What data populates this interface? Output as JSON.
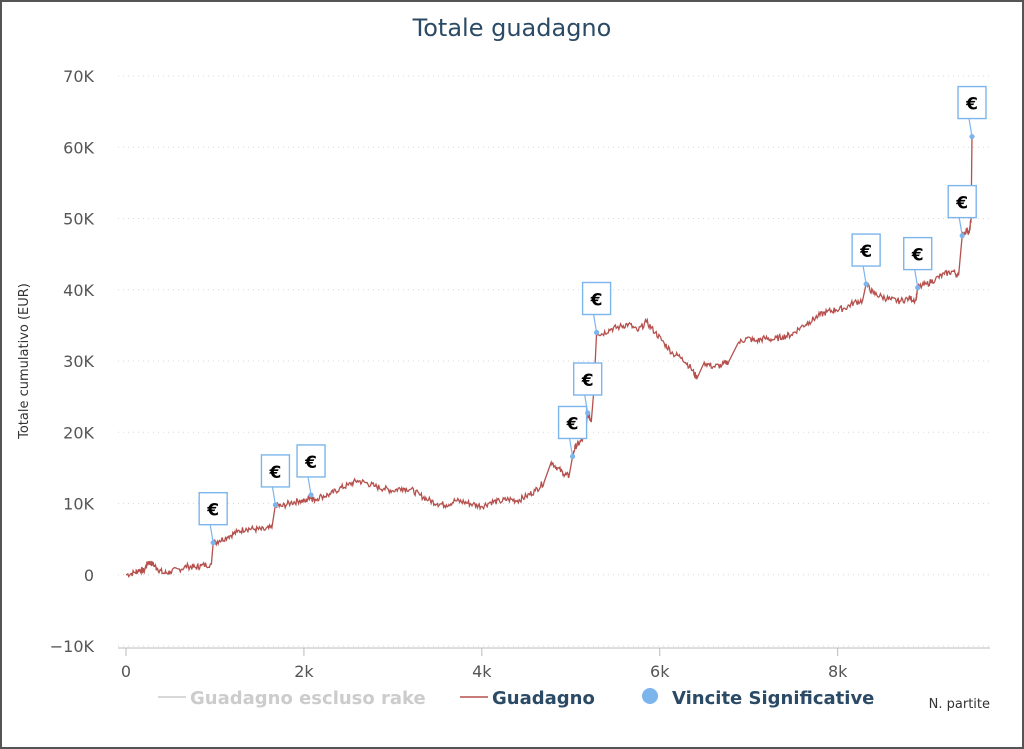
{
  "chart_data": {
    "type": "line",
    "title": "Totale guadagno",
    "ylabel": "Totale cumulativo (EUR)",
    "xlabel": "N. partite",
    "xlim": [
      0,
      9600
    ],
    "ylim": [
      -10000,
      70000
    ],
    "x_ticks": [
      {
        "value": 0,
        "label": "0"
      },
      {
        "value": 2000,
        "label": "2k"
      },
      {
        "value": 4000,
        "label": "4k"
      },
      {
        "value": 6000,
        "label": "6k"
      },
      {
        "value": 8000,
        "label": "8k"
      }
    ],
    "y_ticks": [
      {
        "value": 70000,
        "label": "70K"
      },
      {
        "value": 60000,
        "label": "60K"
      },
      {
        "value": 50000,
        "label": "50K"
      },
      {
        "value": 40000,
        "label": "40K"
      },
      {
        "value": 30000,
        "label": "30K"
      },
      {
        "value": 20000,
        "label": "20K"
      },
      {
        "value": 10000,
        "label": "10K"
      },
      {
        "value": 0,
        "label": "0"
      },
      {
        "value": -10000,
        "label": "−10K"
      }
    ],
    "grid": "horizontal-dotted",
    "legend_position": "bottom",
    "series": [
      {
        "name": "Guadagno escluso rake",
        "color": "#cccccc",
        "visible": false,
        "points": []
      },
      {
        "name": "Guadagno",
        "color": "#b5504d",
        "visible": true,
        "points": [
          [
            0,
            0
          ],
          [
            100,
            300
          ],
          [
            150,
            700
          ],
          [
            200,
            500
          ],
          [
            250,
            1800
          ],
          [
            300,
            1500
          ],
          [
            350,
            900
          ],
          [
            420,
            200
          ],
          [
            500,
            400
          ],
          [
            600,
            800
          ],
          [
            700,
            1200
          ],
          [
            780,
            1000
          ],
          [
            850,
            1300
          ],
          [
            960,
            1500
          ],
          [
            980,
            4500
          ],
          [
            1050,
            4800
          ],
          [
            1150,
            5400
          ],
          [
            1250,
            6000
          ],
          [
            1350,
            6500
          ],
          [
            1450,
            6400
          ],
          [
            1550,
            6300
          ],
          [
            1640,
            6600
          ],
          [
            1680,
            9800
          ],
          [
            1750,
            9600
          ],
          [
            1850,
            10100
          ],
          [
            1950,
            10400
          ],
          [
            2020,
            10300
          ],
          [
            2080,
            11200
          ],
          [
            2100,
            10500
          ],
          [
            2200,
            11000
          ],
          [
            2300,
            11300
          ],
          [
            2400,
            12100
          ],
          [
            2500,
            12600
          ],
          [
            2600,
            13200
          ],
          [
            2700,
            12900
          ],
          [
            2800,
            12400
          ],
          [
            2900,
            12100
          ],
          [
            3000,
            11800
          ],
          [
            3100,
            12200
          ],
          [
            3200,
            12000
          ],
          [
            3300,
            11200
          ],
          [
            3400,
            10500
          ],
          [
            3500,
            10000
          ],
          [
            3600,
            9800
          ],
          [
            3700,
            10400
          ],
          [
            3800,
            10200
          ],
          [
            3900,
            9900
          ],
          [
            4000,
            9600
          ],
          [
            4100,
            10200
          ],
          [
            4200,
            10300
          ],
          [
            4300,
            10600
          ],
          [
            4400,
            10400
          ],
          [
            4500,
            11000
          ],
          [
            4600,
            11800
          ],
          [
            4700,
            13000
          ],
          [
            4780,
            15800
          ],
          [
            4850,
            15000
          ],
          [
            4920,
            14200
          ],
          [
            4980,
            13800
          ],
          [
            5020,
            16600
          ],
          [
            5050,
            18000
          ],
          [
            5100,
            18500
          ],
          [
            5160,
            19500
          ],
          [
            5190,
            22700
          ],
          [
            5230,
            21500
          ],
          [
            5260,
            26000
          ],
          [
            5290,
            34000
          ],
          [
            5350,
            33800
          ],
          [
            5450,
            34500
          ],
          [
            5550,
            34800
          ],
          [
            5650,
            35200
          ],
          [
            5750,
            34200
          ],
          [
            5850,
            35500
          ],
          [
            5950,
            34000
          ],
          [
            6050,
            32500
          ],
          [
            6150,
            31000
          ],
          [
            6250,
            30500
          ],
          [
            6350,
            29000
          ],
          [
            6420,
            27600
          ],
          [
            6500,
            29800
          ],
          [
            6600,
            29200
          ],
          [
            6700,
            29400
          ],
          [
            6780,
            30000
          ],
          [
            6880,
            32500
          ],
          [
            6980,
            33200
          ],
          [
            7080,
            32800
          ],
          [
            7180,
            33200
          ],
          [
            7280,
            33000
          ],
          [
            7380,
            33400
          ],
          [
            7480,
            33700
          ],
          [
            7580,
            34700
          ],
          [
            7680,
            35500
          ],
          [
            7780,
            36300
          ],
          [
            7880,
            36900
          ],
          [
            7980,
            37200
          ],
          [
            8080,
            37400
          ],
          [
            8180,
            38200
          ],
          [
            8280,
            38500
          ],
          [
            8320,
            40800
          ],
          [
            8400,
            39500
          ],
          [
            8500,
            39000
          ],
          [
            8600,
            38600
          ],
          [
            8700,
            38400
          ],
          [
            8800,
            38800
          ],
          [
            8880,
            38600
          ],
          [
            8900,
            40300
          ],
          [
            9000,
            40800
          ],
          [
            9100,
            41500
          ],
          [
            9200,
            42200
          ],
          [
            9300,
            42600
          ],
          [
            9360,
            42000
          ],
          [
            9400,
            47600
          ],
          [
            9450,
            48400
          ],
          [
            9480,
            48000
          ],
          [
            9500,
            50000
          ],
          [
            9510,
            61500
          ]
        ]
      }
    ],
    "significant_wins": {
      "name": "Vincite Significative",
      "color": "#7cb5ec",
      "flag_label": "€",
      "points": [
        [
          980,
          4500
        ],
        [
          1680,
          9800
        ],
        [
          2080,
          11200
        ],
        [
          5020,
          16600
        ],
        [
          5190,
          22700
        ],
        [
          5290,
          34000
        ],
        [
          8320,
          40800
        ],
        [
          8900,
          40300
        ],
        [
          9400,
          47600
        ],
        [
          9510,
          61500
        ]
      ]
    }
  }
}
